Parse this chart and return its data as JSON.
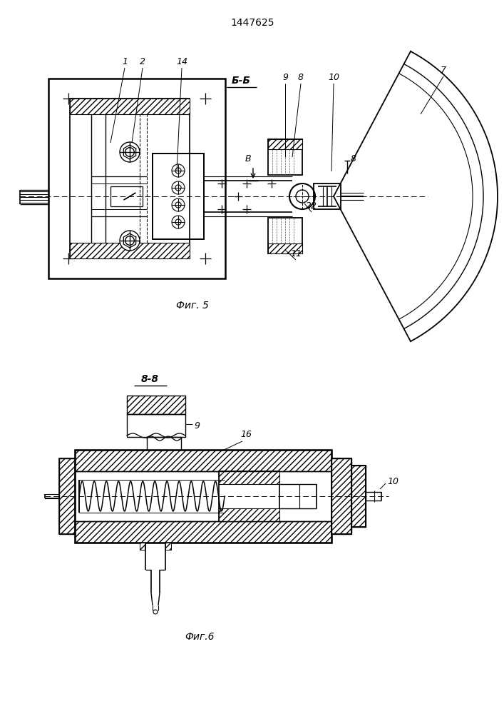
{
  "title": "1447625",
  "fig5_label": "Фиг. 5",
  "fig6_label": "Фиг.6",
  "section_b": "Б-Б",
  "section_8": "8-8",
  "bg_color": "#ffffff",
  "line_color": "#000000"
}
